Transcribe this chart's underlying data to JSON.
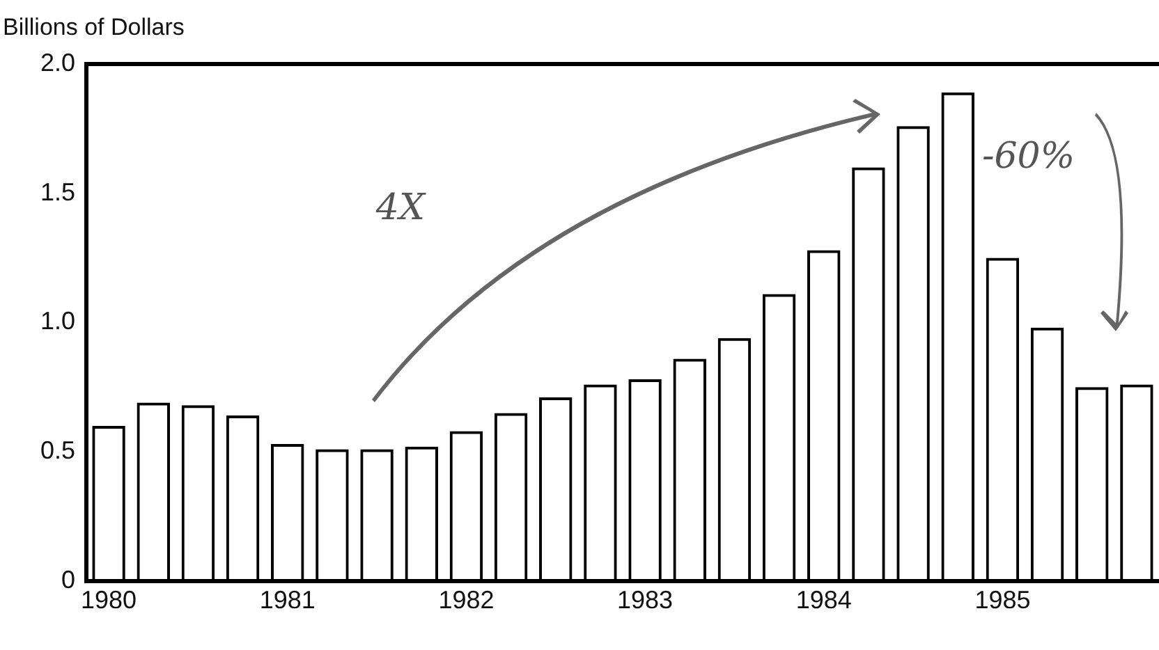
{
  "chart_data": {
    "type": "bar",
    "ylabel": "Billions of Dollars",
    "categories": [
      "1980",
      null,
      null,
      null,
      "1981",
      null,
      null,
      null,
      "1982",
      null,
      null,
      null,
      "1983",
      null,
      null,
      null,
      "1984",
      null,
      null,
      null,
      "1985",
      null,
      null,
      null
    ],
    "values": [
      0.6,
      0.69,
      0.68,
      0.64,
      0.53,
      0.51,
      0.51,
      0.52,
      0.58,
      0.65,
      0.71,
      0.76,
      0.78,
      0.86,
      0.94,
      1.11,
      1.28,
      1.6,
      1.76,
      1.89,
      1.25,
      0.98,
      0.75,
      0.76
    ],
    "color": "#000000",
    "ylim": [
      0,
      2
    ],
    "yticks": [
      0,
      {
        "value": 0.5,
        "label": "0.5"
      },
      {
        "value": 1,
        "label": "1.0"
      },
      {
        "value": 1.5,
        "label": "1.5"
      },
      {
        "value": 2,
        "label": "2.0"
      }
    ],
    "grid": false,
    "legend": false,
    "annotations": [
      "4X",
      "-60%"
    ]
  }
}
